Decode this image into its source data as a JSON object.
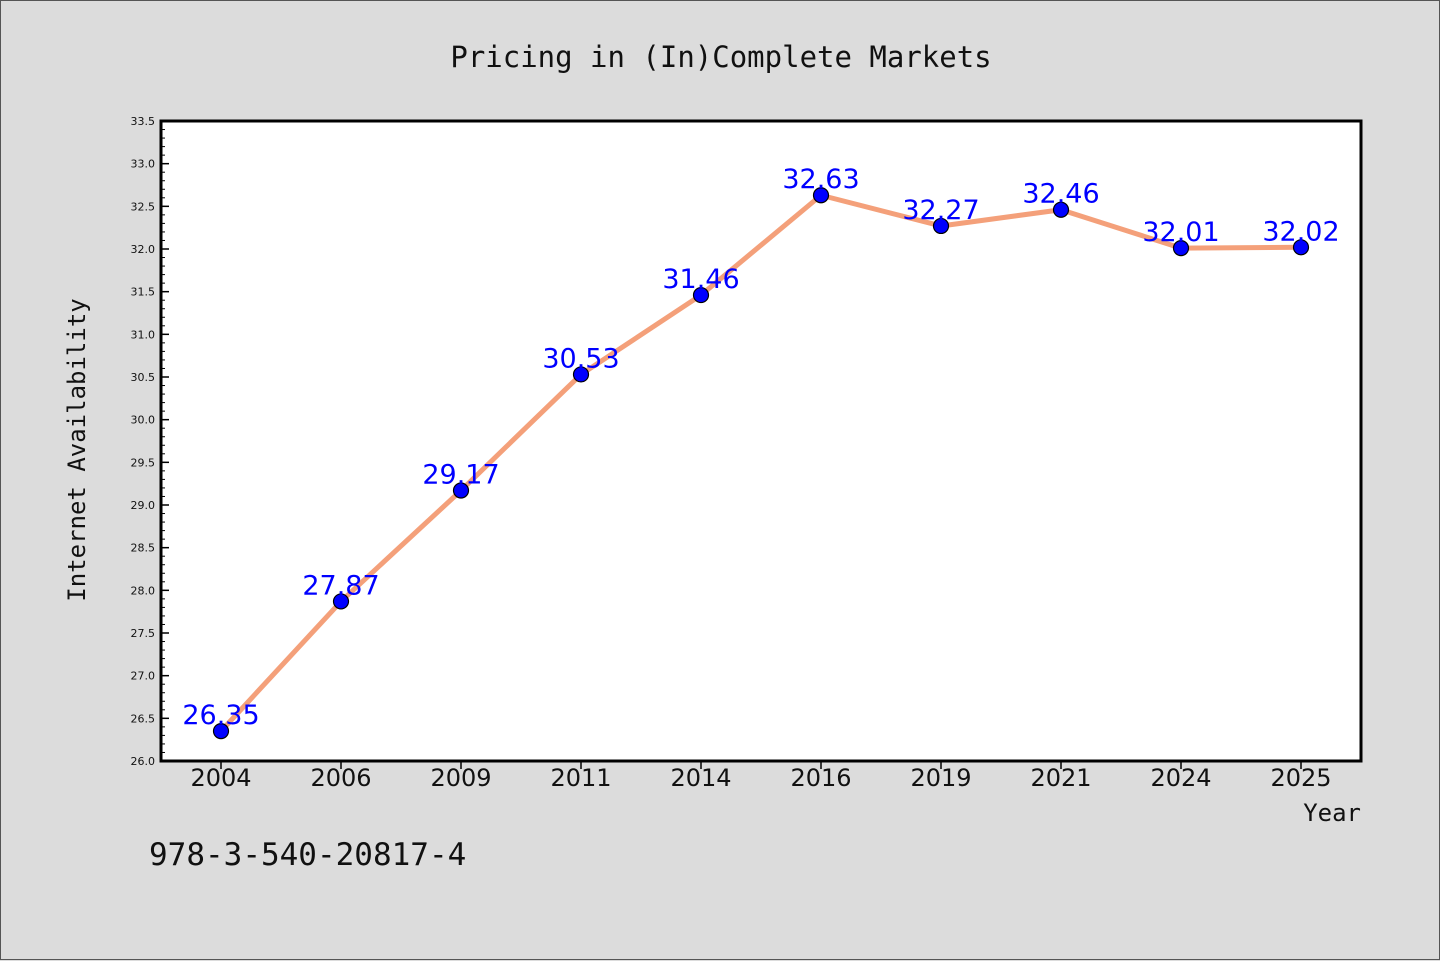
{
  "chart_data": {
    "type": "line",
    "title": "Pricing in (In)Complete Markets",
    "xlabel": "Year",
    "ylabel": "Internet Availability",
    "categories": [
      "2004",
      "2006",
      "2009",
      "2011",
      "2014",
      "2016",
      "2019",
      "2021",
      "2024",
      "2025"
    ],
    "series": [
      {
        "values": [
          26.35,
          27.87,
          29.17,
          30.53,
          31.46,
          32.63,
          32.27,
          32.46,
          32.01,
          32.02
        ],
        "data_labels": [
          "26.35",
          "27.87",
          "29.17",
          "30.53",
          "31.46",
          "32.63",
          "32.27",
          "32.46",
          "32.01",
          "32.02"
        ],
        "line_color": "#f4a07a",
        "marker_color": "#0000ff",
        "label_color": "#0000ff"
      }
    ],
    "ylim": [
      26.0,
      33.5
    ],
    "yticks": [
      "26.0",
      "26.5",
      "27.0",
      "27.5",
      "28.0",
      "28.5",
      "29.0",
      "29.5",
      "30.0",
      "30.5",
      "31.0",
      "31.5",
      "32.0",
      "32.5",
      "33.0",
      "33.5"
    ],
    "grid": false,
    "legend": "none"
  },
  "footnote": "978-3-540-20817-4",
  "colors": {
    "background": "#dcdcdc",
    "plot_background": "#ffffff",
    "axis": "#000000"
  }
}
